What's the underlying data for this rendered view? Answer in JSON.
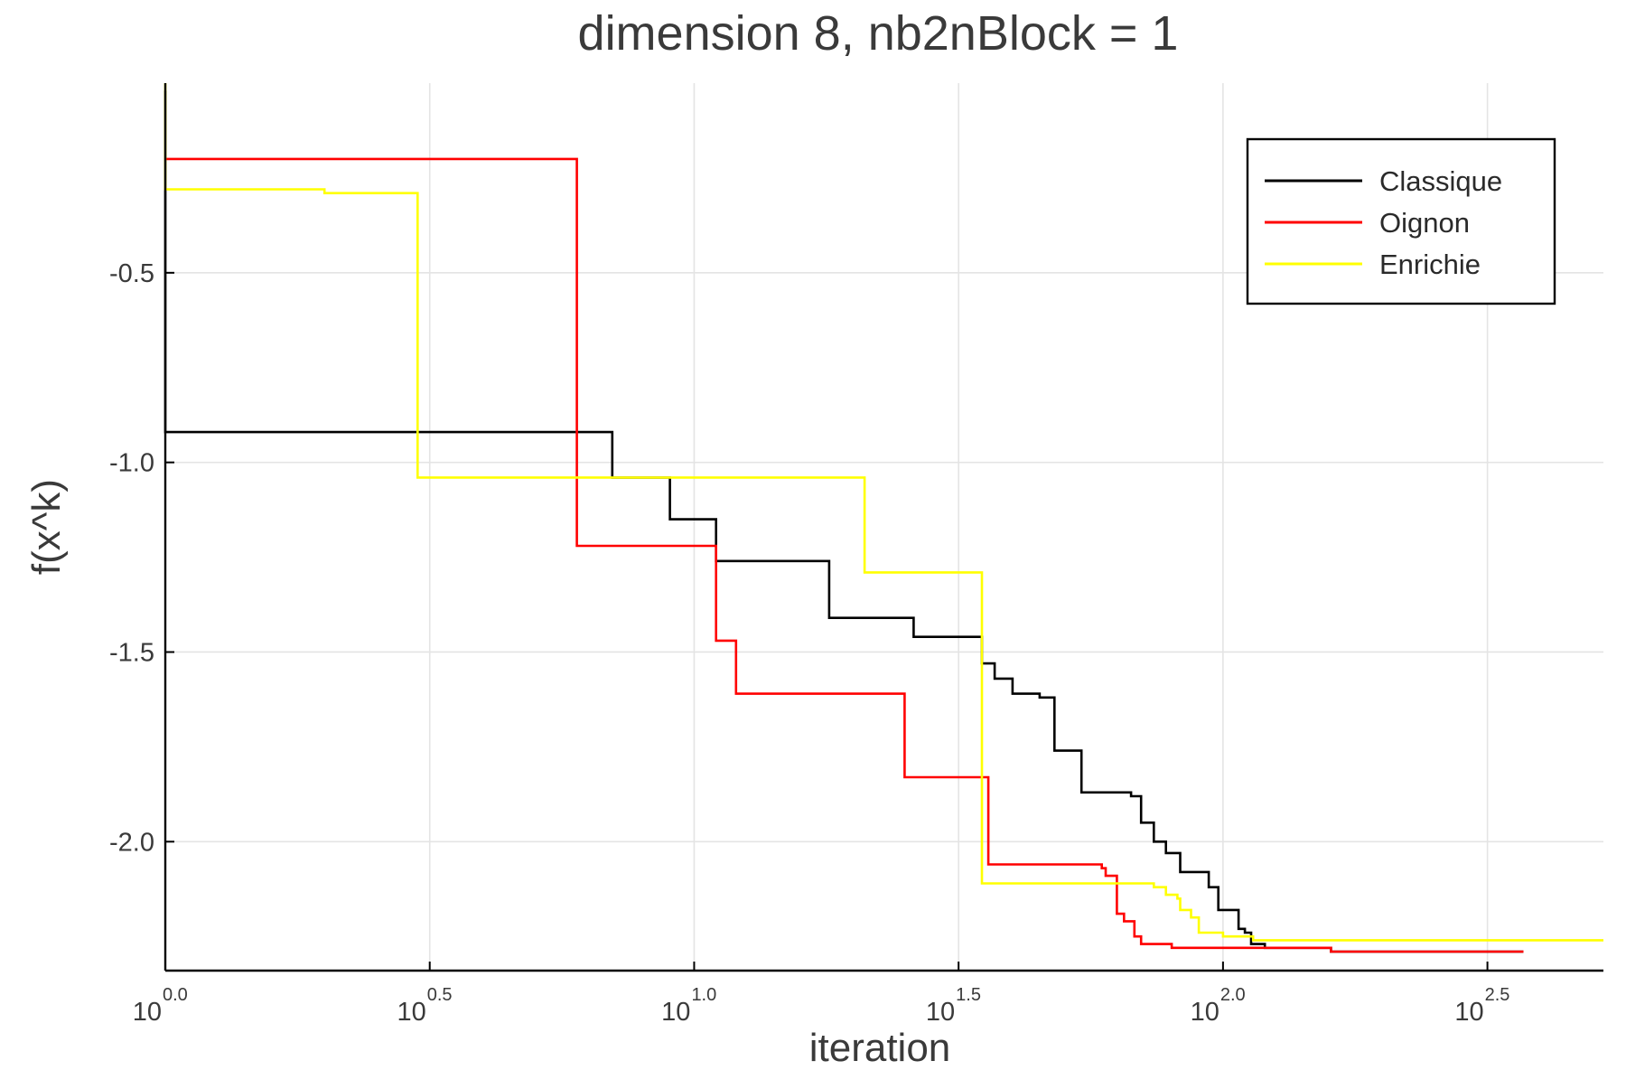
{
  "chart_data": {
    "type": "line",
    "title": "dimension 8, nb2nBlock = 1",
    "xlabel": "iteration",
    "ylabel": "f(x^k)",
    "xscale": "log10",
    "xlim": [
      1,
      524
    ],
    "ylim": [
      -2.34,
      0.0
    ],
    "grid": true,
    "legend_position": "top-right",
    "x_ticks": [
      {
        "base": "10",
        "exp": "0.0",
        "value": 1
      },
      {
        "base": "10",
        "exp": "0.5",
        "value": 3.1623
      },
      {
        "base": "10",
        "exp": "1.0",
        "value": 10
      },
      {
        "base": "10",
        "exp": "1.5",
        "value": 31.623
      },
      {
        "base": "10",
        "exp": "2.0",
        "value": 100
      },
      {
        "base": "10",
        "exp": "2.5",
        "value": 316.23
      }
    ],
    "y_ticks": [
      {
        "label": "-0.5",
        "value": -0.5
      },
      {
        "label": "-1.0",
        "value": -1.0
      },
      {
        "label": "-1.5",
        "value": -1.5
      },
      {
        "label": "-2.0",
        "value": -2.0
      }
    ],
    "series": [
      {
        "name": "Classique",
        "color": "#000000",
        "step": true,
        "x": [
          1,
          1,
          7,
          7,
          9,
          9,
          11,
          11,
          18,
          18,
          26,
          26,
          35,
          35,
          37,
          37,
          40,
          40,
          45,
          45,
          48,
          48,
          54,
          54,
          67,
          67,
          70,
          70,
          74,
          74,
          78,
          78,
          83,
          83,
          94,
          94,
          98,
          98,
          107,
          107,
          110,
          110,
          113,
          113,
          120,
          120,
          160,
          160,
          218,
          218,
          370
        ],
        "y": [
          -0.02,
          -0.92,
          -0.92,
          -1.04,
          -1.04,
          -1.15,
          -1.15,
          -1.26,
          -1.26,
          -1.41,
          -1.41,
          -1.46,
          -1.46,
          -1.53,
          -1.53,
          -1.57,
          -1.57,
          -1.61,
          -1.61,
          -1.62,
          -1.62,
          -1.76,
          -1.76,
          -1.87,
          -1.87,
          -1.88,
          -1.88,
          -1.95,
          -1.95,
          -2.0,
          -2.0,
          -2.03,
          -2.03,
          -2.08,
          -2.08,
          -2.12,
          -2.12,
          -2.18,
          -2.18,
          -2.23,
          -2.23,
          -2.24,
          -2.24,
          -2.27,
          -2.27,
          -2.28,
          -2.28,
          -2.29,
          -2.29,
          -2.29,
          -2.29
        ]
      },
      {
        "name": "Oignon",
        "color": "#ff0000",
        "step": true,
        "x": [
          1,
          6,
          6,
          11,
          11,
          12,
          12,
          25,
          25,
          36,
          36,
          59,
          59,
          60,
          60,
          63,
          63,
          65,
          65,
          68,
          68,
          70,
          70,
          80,
          80,
          160,
          160,
          370
        ],
        "y": [
          -0.2,
          -0.2,
          -1.22,
          -1.22,
          -1.47,
          -1.47,
          -1.61,
          -1.61,
          -1.83,
          -1.83,
          -2.06,
          -2.06,
          -2.07,
          -2.07,
          -2.09,
          -2.09,
          -2.19,
          -2.19,
          -2.21,
          -2.21,
          -2.25,
          -2.25,
          -2.27,
          -2.27,
          -2.28,
          -2.28,
          -2.29,
          -2.29
        ]
      },
      {
        "name": "Enrichie",
        "color": "#ffff00",
        "step": true,
        "x": [
          1,
          1,
          2,
          2,
          3,
          3,
          21,
          21,
          35,
          35,
          74,
          74,
          78,
          78,
          82,
          82,
          83,
          83,
          87,
          87,
          90,
          90,
          100,
          100,
          114,
          114,
          130,
          130,
          524
        ],
        "y": [
          0.0,
          -0.28,
          -0.28,
          -0.29,
          -0.29,
          -1.04,
          -1.04,
          -1.29,
          -1.29,
          -2.11,
          -2.11,
          -2.12,
          -2.12,
          -2.14,
          -2.14,
          -2.15,
          -2.15,
          -2.18,
          -2.18,
          -2.2,
          -2.2,
          -2.24,
          -2.24,
          -2.25,
          -2.25,
          -2.26,
          -2.26,
          -2.26,
          -2.26
        ]
      }
    ]
  }
}
